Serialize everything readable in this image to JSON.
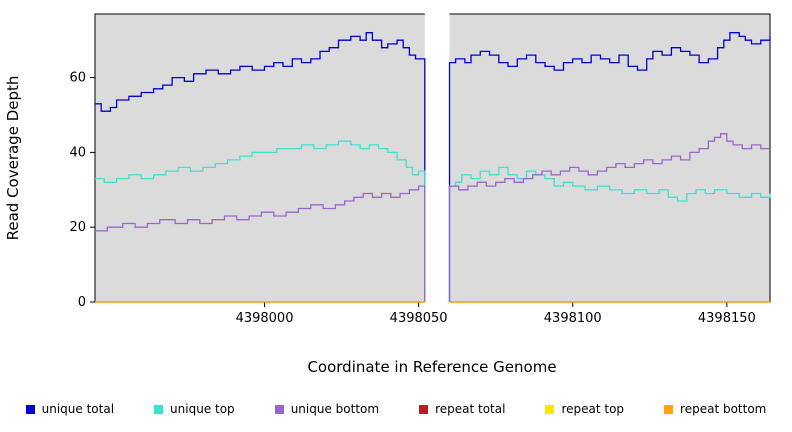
{
  "chart_data": {
    "type": "line",
    "interpolation": "step-after",
    "title": "",
    "xlabel": "Coordinate in Reference Genome",
    "ylabel": "Read Coverage Depth",
    "xlim": [
      4397945,
      4398164
    ],
    "ylim": [
      0,
      77
    ],
    "xticks": [
      4398000,
      4398050,
      4398100,
      4398150
    ],
    "yticks": [
      0,
      20,
      40,
      60
    ],
    "grid": false,
    "panel_background": "#DBDBDB",
    "frame_color": "#000000",
    "legend_position": "bottom",
    "coverage_gap": {
      "from": 4398052,
      "to": 4398060
    },
    "series": [
      {
        "id": "unique-total",
        "name": "unique total",
        "color": "#0000CD",
        "segments": [
          [
            [
              4397945,
              53
            ],
            [
              4397947,
              51
            ],
            [
              4397950,
              52
            ],
            [
              4397952,
              54
            ],
            [
              4397956,
              55
            ],
            [
              4397960,
              56
            ],
            [
              4397964,
              57
            ],
            [
              4397967,
              58
            ],
            [
              4397970,
              60
            ],
            [
              4397974,
              59
            ],
            [
              4397977,
              61
            ],
            [
              4397981,
              62
            ],
            [
              4397985,
              61
            ],
            [
              4397989,
              62
            ],
            [
              4397992,
              63
            ],
            [
              4397996,
              62
            ],
            [
              4398000,
              63
            ],
            [
              4398003,
              64
            ],
            [
              4398006,
              63
            ],
            [
              4398009,
              65
            ],
            [
              4398012,
              64
            ],
            [
              4398015,
              65
            ],
            [
              4398018,
              67
            ],
            [
              4398021,
              68
            ],
            [
              4398024,
              70
            ],
            [
              4398028,
              71
            ],
            [
              4398031,
              70
            ],
            [
              4398033,
              72
            ],
            [
              4398035,
              70
            ],
            [
              4398038,
              68
            ],
            [
              4398040,
              69
            ],
            [
              4398043,
              70
            ],
            [
              4398045,
              68
            ],
            [
              4398047,
              66
            ],
            [
              4398049,
              65
            ],
            [
              4398052,
              0
            ]
          ],
          [
            [
              4398060,
              0
            ],
            [
              4398060,
              64
            ],
            [
              4398062,
              65
            ],
            [
              4398065,
              64
            ],
            [
              4398067,
              66
            ],
            [
              4398070,
              67
            ],
            [
              4398073,
              66
            ],
            [
              4398076,
              64
            ],
            [
              4398079,
              63
            ],
            [
              4398082,
              65
            ],
            [
              4398085,
              66
            ],
            [
              4398088,
              64
            ],
            [
              4398091,
              63
            ],
            [
              4398094,
              62
            ],
            [
              4398097,
              64
            ],
            [
              4398100,
              65
            ],
            [
              4398103,
              64
            ],
            [
              4398106,
              66
            ],
            [
              4398109,
              65
            ],
            [
              4398112,
              64
            ],
            [
              4398115,
              66
            ],
            [
              4398118,
              63
            ],
            [
              4398121,
              62
            ],
            [
              4398124,
              65
            ],
            [
              4398126,
              67
            ],
            [
              4398129,
              66
            ],
            [
              4398132,
              68
            ],
            [
              4398135,
              67
            ],
            [
              4398138,
              66
            ],
            [
              4398141,
              64
            ],
            [
              4398144,
              65
            ],
            [
              4398147,
              68
            ],
            [
              4398149,
              70
            ],
            [
              4398151,
              72
            ],
            [
              4398154,
              71
            ],
            [
              4398156,
              70
            ],
            [
              4398158,
              69
            ],
            [
              4398161,
              70
            ],
            [
              4398164,
              71
            ]
          ]
        ]
      },
      {
        "id": "unique-top",
        "name": "unique top",
        "color": "#40E0D0",
        "segments": [
          [
            [
              4397945,
              33
            ],
            [
              4397948,
              32
            ],
            [
              4397952,
              33
            ],
            [
              4397956,
              34
            ],
            [
              4397960,
              33
            ],
            [
              4397964,
              34
            ],
            [
              4397968,
              35
            ],
            [
              4397972,
              36
            ],
            [
              4397976,
              35
            ],
            [
              4397980,
              36
            ],
            [
              4397984,
              37
            ],
            [
              4397988,
              38
            ],
            [
              4397992,
              39
            ],
            [
              4397996,
              40
            ],
            [
              4398000,
              40
            ],
            [
              4398004,
              41
            ],
            [
              4398008,
              41
            ],
            [
              4398012,
              42
            ],
            [
              4398016,
              41
            ],
            [
              4398020,
              42
            ],
            [
              4398024,
              43
            ],
            [
              4398028,
              42
            ],
            [
              4398031,
              41
            ],
            [
              4398034,
              42
            ],
            [
              4398037,
              41
            ],
            [
              4398040,
              40
            ],
            [
              4398043,
              38
            ],
            [
              4398046,
              36
            ],
            [
              4398048,
              34
            ],
            [
              4398050,
              35
            ],
            [
              4398052,
              0
            ]
          ],
          [
            [
              4398060,
              0
            ],
            [
              4398060,
              31
            ],
            [
              4398062,
              32
            ],
            [
              4398064,
              34
            ],
            [
              4398067,
              33
            ],
            [
              4398070,
              35
            ],
            [
              4398073,
              34
            ],
            [
              4398076,
              36
            ],
            [
              4398079,
              34
            ],
            [
              4398082,
              33
            ],
            [
              4398085,
              35
            ],
            [
              4398088,
              34
            ],
            [
              4398091,
              33
            ],
            [
              4398094,
              31
            ],
            [
              4398097,
              32
            ],
            [
              4398100,
              31
            ],
            [
              4398104,
              30
            ],
            [
              4398108,
              31
            ],
            [
              4398112,
              30
            ],
            [
              4398116,
              29
            ],
            [
              4398120,
              30
            ],
            [
              4398124,
              29
            ],
            [
              4398128,
              30
            ],
            [
              4398131,
              28
            ],
            [
              4398134,
              27
            ],
            [
              4398137,
              29
            ],
            [
              4398140,
              30
            ],
            [
              4398143,
              29
            ],
            [
              4398146,
              30
            ],
            [
              4398150,
              29
            ],
            [
              4398154,
              28
            ],
            [
              4398158,
              29
            ],
            [
              4398161,
              28
            ],
            [
              4398164,
              29
            ]
          ]
        ]
      },
      {
        "id": "unique-bottom",
        "name": "unique bottom",
        "color": "#9966CC",
        "segments": [
          [
            [
              4397945,
              19
            ],
            [
              4397949,
              20
            ],
            [
              4397954,
              21
            ],
            [
              4397958,
              20
            ],
            [
              4397962,
              21
            ],
            [
              4397966,
              22
            ],
            [
              4397971,
              21
            ],
            [
              4397975,
              22
            ],
            [
              4397979,
              21
            ],
            [
              4397983,
              22
            ],
            [
              4397987,
              23
            ],
            [
              4397991,
              22
            ],
            [
              4397995,
              23
            ],
            [
              4397999,
              24
            ],
            [
              4398003,
              23
            ],
            [
              4398007,
              24
            ],
            [
              4398011,
              25
            ],
            [
              4398015,
              26
            ],
            [
              4398019,
              25
            ],
            [
              4398023,
              26
            ],
            [
              4398026,
              27
            ],
            [
              4398029,
              28
            ],
            [
              4398032,
              29
            ],
            [
              4398035,
              28
            ],
            [
              4398038,
              29
            ],
            [
              4398041,
              28
            ],
            [
              4398044,
              29
            ],
            [
              4398047,
              30
            ],
            [
              4398050,
              31
            ],
            [
              4398052,
              0
            ]
          ],
          [
            [
              4398060,
              0
            ],
            [
              4398060,
              31
            ],
            [
              4398063,
              30
            ],
            [
              4398066,
              31
            ],
            [
              4398069,
              32
            ],
            [
              4398072,
              31
            ],
            [
              4398075,
              32
            ],
            [
              4398078,
              33
            ],
            [
              4398081,
              32
            ],
            [
              4398084,
              33
            ],
            [
              4398087,
              34
            ],
            [
              4398090,
              35
            ],
            [
              4398093,
              34
            ],
            [
              4398096,
              35
            ],
            [
              4398099,
              36
            ],
            [
              4398102,
              35
            ],
            [
              4398105,
              34
            ],
            [
              4398108,
              35
            ],
            [
              4398111,
              36
            ],
            [
              4398114,
              37
            ],
            [
              4398117,
              36
            ],
            [
              4398120,
              37
            ],
            [
              4398123,
              38
            ],
            [
              4398126,
              37
            ],
            [
              4398129,
              38
            ],
            [
              4398132,
              39
            ],
            [
              4398135,
              38
            ],
            [
              4398138,
              40
            ],
            [
              4398141,
              41
            ],
            [
              4398144,
              43
            ],
            [
              4398146,
              44
            ],
            [
              4398148,
              45
            ],
            [
              4398150,
              43
            ],
            [
              4398152,
              42
            ],
            [
              4398155,
              41
            ],
            [
              4398158,
              42
            ],
            [
              4398161,
              41
            ],
            [
              4398164,
              41
            ]
          ]
        ]
      },
      {
        "id": "repeat-total",
        "name": "repeat total",
        "color": "#B22222",
        "segments": [
          [
            [
              4397945,
              0
            ],
            [
              4398052,
              0
            ]
          ],
          [
            [
              4398060,
              0
            ],
            [
              4398164,
              0
            ]
          ]
        ]
      },
      {
        "id": "repeat-top",
        "name": "repeat top",
        "color": "#FFE600",
        "segments": [
          [
            [
              4397945,
              0
            ],
            [
              4398052,
              0
            ]
          ],
          [
            [
              4398060,
              0
            ],
            [
              4398164,
              0
            ]
          ]
        ]
      },
      {
        "id": "repeat-bottom",
        "name": "repeat bottom",
        "color": "#FFA500",
        "segments": [
          [
            [
              4397945,
              0
            ],
            [
              4398052,
              0
            ]
          ],
          [
            [
              4398060,
              0
            ],
            [
              4398164,
              0
            ]
          ]
        ]
      }
    ]
  }
}
